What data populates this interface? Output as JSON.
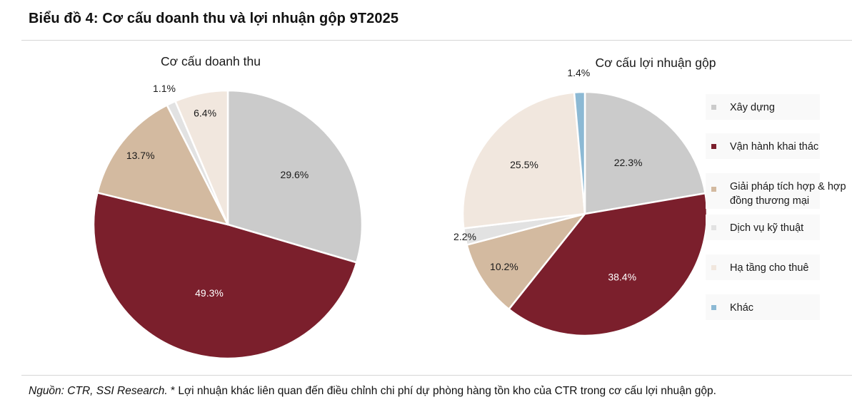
{
  "header": {
    "title": "Biểu đồ 4: Cơ cấu doanh thu và lợi nhuận gộp 9T2025"
  },
  "footnote": {
    "source": "Nguồn: CTR, SSI Research.",
    "note": " * Lợi nhuận khác liên quan đến điều chỉnh chi phí dự phòng hàng tồn kho của CTR trong cơ cấu lợi nhuận gộp."
  },
  "colors": {
    "xay_dung": "#cbcbcb",
    "van_hanh": "#7b1f2c",
    "giai_phap": "#d3baa0",
    "dich_vu": "#e2e2e2",
    "ha_tang": "#f1e7de",
    "khac": "#8cb9d4"
  },
  "legend": [
    {
      "label": "Xây dựng",
      "color": "#cbcbcb"
    },
    {
      "label": "Vận hành khai thác",
      "color": "#7b1f2c"
    },
    {
      "label": "Giải pháp tích hợp & hợp",
      "label_line2": "đồng thương mại",
      "color": "#d3baa0"
    },
    {
      "label": "Dịch vụ kỹ thuật",
      "color": "#e2e2e2"
    },
    {
      "label": "Hạ tầng cho thuê",
      "color": "#f1e7de"
    },
    {
      "label": "Khác",
      "color": "#8cb9d4"
    }
  ],
  "chart_data": [
    {
      "type": "pie",
      "title": "Cơ cấu doanh thu",
      "categories": [
        "Xây dựng",
        "Vận hành khai thác",
        "Giải pháp tích hợp & hợp đồng thương mại",
        "Dịch vụ kỹ thuật",
        "Hạ tầng cho thuê"
      ],
      "values": [
        29.6,
        49.3,
        13.7,
        1.1,
        6.4
      ],
      "labels": [
        "29.6%",
        "49.3%",
        "13.7%",
        "1.1%",
        "6.4%"
      ],
      "colors": [
        "#cbcbcb",
        "#7b1f2c",
        "#d3baa0",
        "#e2e2e2",
        "#f1e7de"
      ],
      "start_angle_deg": 0,
      "direction": "clockwise"
    },
    {
      "type": "pie",
      "title": "Cơ cấu lợi nhuận gộp",
      "categories": [
        "Xây dựng",
        "Vận hành khai thác",
        "Giải pháp tích hợp & hợp đồng thương mại",
        "Dịch vụ kỹ thuật",
        "Hạ tầng cho thuê",
        "Khác"
      ],
      "values": [
        22.3,
        38.4,
        10.2,
        2.2,
        25.5,
        1.4
      ],
      "labels": [
        "22.3%",
        "38.4%",
        "10.2%",
        "2.2%",
        "25.5%",
        "1.4%"
      ],
      "colors": [
        "#cbcbcb",
        "#7b1f2c",
        "#d3baa0",
        "#e2e2e2",
        "#f1e7de",
        "#8cb9d4"
      ],
      "start_angle_deg": 0,
      "direction": "clockwise",
      "legend_position": "right"
    }
  ]
}
